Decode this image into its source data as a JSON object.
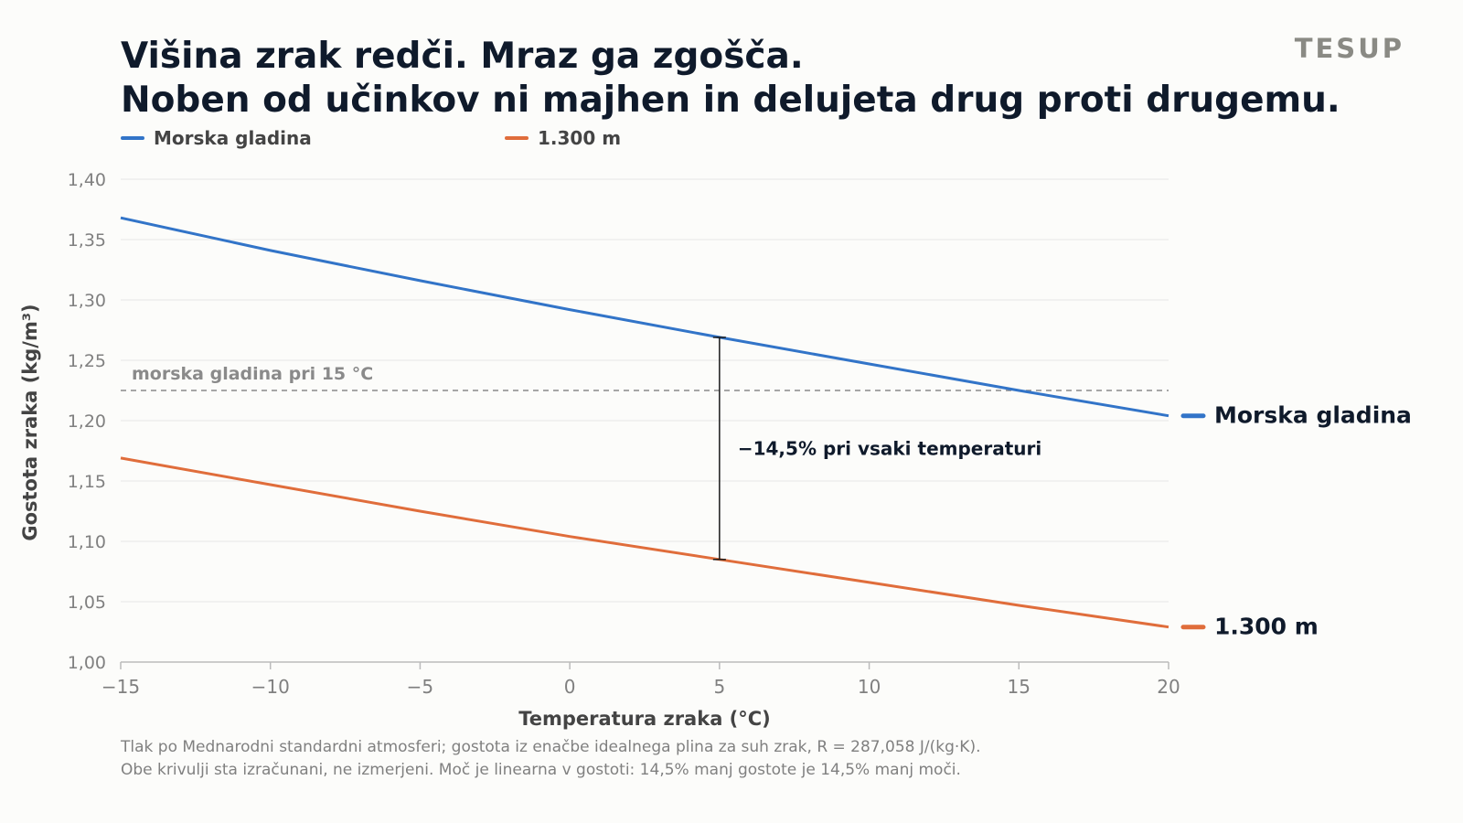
{
  "brand": "TESUP",
  "title_lines": [
    "Višina zrak redči. Mraz ga zgošča.",
    "Noben od učinkov ni majhen in delujeta drug proti drugemu."
  ],
  "footnote_lines": [
    "Tlak po Mednarodni standardni atmosferi; gostota iz enačbe idealnega plina za suh zrak, R = 287,058 J/(kg·K).",
    "Obe krivulji sta izračunani, ne izmerjeni. Moč je linearna v gostoti: 14,5% manj gostote je 14,5% manj moči."
  ],
  "chart_data": {
    "type": "line",
    "xlabel": "Temperatura zraka (°C)",
    "ylabel": "Gostota zraka (kg/m³)",
    "xlim": [
      -15,
      20
    ],
    "ylim": [
      1.0,
      1.4
    ],
    "x_ticks": [
      -15,
      -10,
      -5,
      0,
      5,
      10,
      15,
      20
    ],
    "x_tick_labels": [
      "−15",
      "−10",
      "−5",
      "0",
      "5",
      "10",
      "15",
      "20"
    ],
    "y_ticks": [
      1.0,
      1.05,
      1.1,
      1.15,
      1.2,
      1.25,
      1.3,
      1.35,
      1.4
    ],
    "y_tick_labels": [
      "1,00",
      "1,05",
      "1,10",
      "1,15",
      "1,20",
      "1,25",
      "1,30",
      "1,35",
      "1,40"
    ],
    "grid": "horizontal",
    "legend_placement": "top-left",
    "series": [
      {
        "name": "Morska gladina",
        "color": "#3274c8",
        "x": [
          -15,
          -10,
          -5,
          0,
          5,
          10,
          15,
          20
        ],
        "y": [
          1.368,
          1.341,
          1.316,
          1.292,
          1.269,
          1.247,
          1.225,
          1.204
        ]
      },
      {
        "name": "1.300 m",
        "color": "#e06d3b",
        "x": [
          -15,
          -10,
          -5,
          0,
          5,
          10,
          15,
          20
        ],
        "y": [
          1.169,
          1.147,
          1.125,
          1.104,
          1.085,
          1.066,
          1.047,
          1.029
        ]
      }
    ],
    "reference_line": {
      "y": 1.225,
      "label": "morska gladina pri 15 °C",
      "color": "#8a8a8a"
    },
    "annotation": {
      "x": 5,
      "y_top": 1.269,
      "y_bottom": 1.085,
      "label": "−14,5% pri vsaki temperaturi"
    },
    "colors": {
      "text_dark": "#0f1a2b",
      "text_muted": "#808080",
      "grid": "#e6e6e6",
      "axis": "#bbbbbb",
      "legend_text": "#444444"
    }
  }
}
